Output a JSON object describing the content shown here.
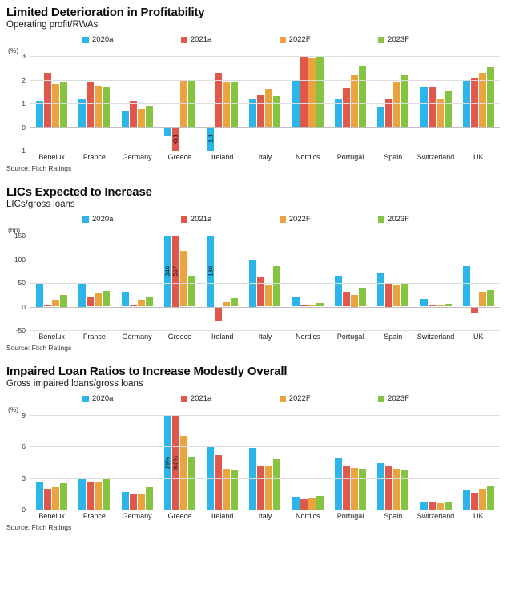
{
  "chart_data": [
    {
      "type": "bar",
      "title": "Limited Deterioration in Profitability",
      "subtitle": "Operating profit/RWAs",
      "unit": "(%)",
      "source": "Source: Fitch Ratings",
      "categories": [
        "Benelux",
        "France",
        "Germany",
        "Greece",
        "Ireland",
        "Italy",
        "Nordics",
        "Portugal",
        "Spain",
        "Switzerland",
        "UK"
      ],
      "ylim": [
        -1,
        3
      ],
      "yticks": [
        3,
        2,
        1,
        0,
        -1
      ],
      "grid": true,
      "legend_position": "top",
      "series": [
        {
          "name": "2020a",
          "color": "#2bb6ea",
          "values": [
            1.1,
            1.2,
            0.7,
            -0.4,
            -1.1,
            1.2,
            2.0,
            1.2,
            0.85,
            1.7,
            2.0
          ]
        },
        {
          "name": "2021a",
          "color": "#e2574c",
          "values": [
            2.3,
            1.9,
            1.1,
            -8.1,
            2.3,
            1.35,
            3.05,
            1.65,
            1.2,
            1.7,
            2.1
          ]
        },
        {
          "name": "2022F",
          "color": "#eaa33e",
          "values": [
            1.8,
            1.75,
            0.75,
            2.0,
            1.9,
            1.6,
            2.9,
            2.2,
            1.9,
            1.2,
            2.3
          ]
        },
        {
          "name": "2023F",
          "color": "#85c441",
          "values": [
            1.9,
            1.7,
            0.9,
            1.95,
            1.9,
            1.3,
            2.95,
            2.6,
            2.2,
            1.5,
            2.55
          ]
        }
      ],
      "clip_labels": [
        {
          "category": "Greece",
          "series": "2021a",
          "label": "-8.1"
        },
        {
          "category": "Ireland",
          "series": "2020a",
          "label": "-1.1"
        }
      ]
    },
    {
      "type": "bar",
      "title": "LICs Expected to Increase",
      "subtitle": "LICs/gross loans",
      "unit": "(bp)",
      "source": "Source: Fitch Ratings",
      "categories": [
        "Benelux",
        "France",
        "Germany",
        "Greece",
        "Ireland",
        "Italy",
        "Nordics",
        "Portugal",
        "Spain",
        "Switzerland",
        "UK"
      ],
      "ylim": [
        -50,
        150
      ],
      "yticks": [
        150,
        100,
        50,
        0,
        -50
      ],
      "grid": true,
      "legend_position": "top",
      "series": [
        {
          "name": "2020a",
          "color": "#2bb6ea",
          "values": [
            50,
            50,
            30,
            340,
            180,
            100,
            22,
            65,
            70,
            16,
            85
          ]
        },
        {
          "name": "2021a",
          "color": "#e2574c",
          "values": [
            3,
            20,
            5,
            567,
            -30,
            62,
            2,
            30,
            50,
            2,
            -12
          ]
        },
        {
          "name": "2022F",
          "color": "#eaa33e",
          "values": [
            15,
            28,
            15,
            118,
            10,
            45,
            5,
            25,
            45,
            4,
            30
          ]
        },
        {
          "name": "2023F",
          "color": "#85c441",
          "values": [
            25,
            33,
            22,
            65,
            18,
            85,
            8,
            38,
            48,
            6,
            35
          ]
        }
      ],
      "clip_labels": [
        {
          "category": "Greece",
          "series": "2020a",
          "label": "340"
        },
        {
          "category": "Greece",
          "series": "2021a",
          "label": "567"
        },
        {
          "category": "Ireland",
          "series": "2020a",
          "label": "180"
        }
      ]
    },
    {
      "type": "bar",
      "title": "Impaired Loan Ratios to Increase Modestly Overall",
      "subtitle": "Gross impaired loans/gross loans",
      "unit": "(%)",
      "source": "Source: Fitch Ratings",
      "categories": [
        "Benelux",
        "France",
        "Germany",
        "Greece",
        "Ireland",
        "Italy",
        "Nordics",
        "Portugal",
        "Spain",
        "Switzerland",
        "UK"
      ],
      "ylim": [
        0,
        9
      ],
      "yticks": [
        9,
        6,
        3,
        0
      ],
      "grid": true,
      "legend_position": "top",
      "series": [
        {
          "name": "2020a",
          "color": "#2bb6ea",
          "values": [
            2.7,
            2.9,
            1.7,
            29,
            6.1,
            5.9,
            1.2,
            4.9,
            4.4,
            0.8,
            1.8
          ]
        },
        {
          "name": "2021a",
          "color": "#e2574c",
          "values": [
            2.0,
            2.7,
            1.5,
            9.8,
            5.2,
            4.2,
            1.0,
            4.1,
            4.2,
            0.7,
            1.6
          ]
        },
        {
          "name": "2022F",
          "color": "#eaa33e",
          "values": [
            2.1,
            2.6,
            1.5,
            7.0,
            3.9,
            4.1,
            1.1,
            4.0,
            3.9,
            0.6,
            2.0
          ]
        },
        {
          "name": "2023F",
          "color": "#85c441",
          "values": [
            2.5,
            3.0,
            2.1,
            5.0,
            3.7,
            4.8,
            1.3,
            3.9,
            3.8,
            0.7,
            2.2
          ]
        }
      ],
      "clip_labels": [
        {
          "category": "Greece",
          "series": "2020a",
          "label": "29%"
        },
        {
          "category": "Greece",
          "series": "2021a",
          "label": "9.8%"
        }
      ]
    }
  ]
}
